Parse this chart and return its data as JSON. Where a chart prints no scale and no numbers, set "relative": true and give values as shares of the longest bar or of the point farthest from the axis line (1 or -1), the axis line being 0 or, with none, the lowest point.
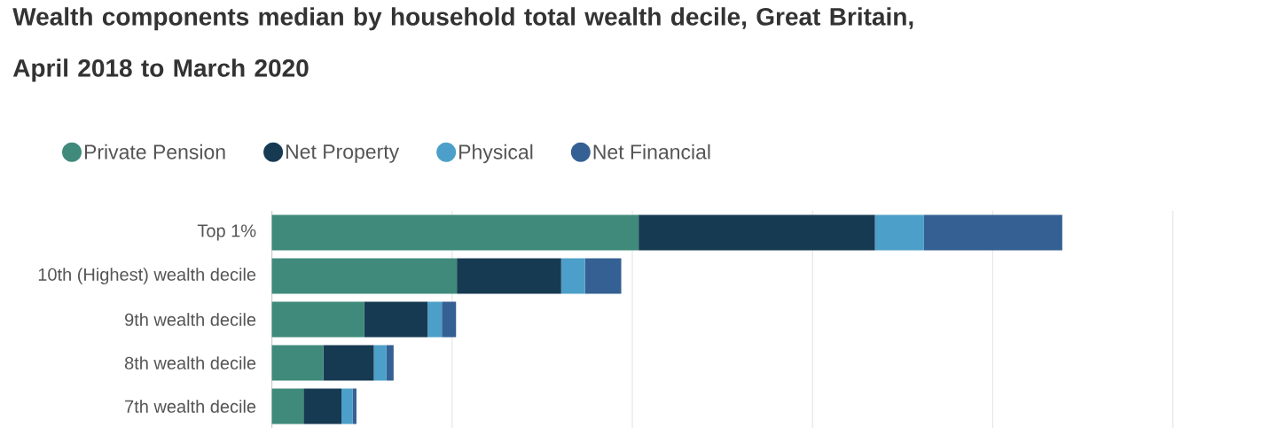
{
  "chart_data": {
    "type": "bar",
    "orientation": "horizontal",
    "stacked": true,
    "relative": true,
    "grid": "x",
    "legend": "top",
    "title": "Wealth components median by household total wealth decile, Great Britain, April 2018 to March 2020",
    "categories": [
      "Top 1%",
      "10th (Highest) wealth decile",
      "9th wealth decile",
      "8th wealth decile",
      "7th wealth decile"
    ],
    "series": [
      {
        "name": "Private Pension",
        "color": "#3f8a7a",
        "values": [
          0.464,
          0.234,
          0.117,
          0.065,
          0.04
        ]
      },
      {
        "name": "Net Property",
        "color": "#173a53",
        "values": [
          0.299,
          0.132,
          0.08,
          0.064,
          0.048
        ]
      },
      {
        "name": "Physical",
        "color": "#4c9fc8",
        "values": [
          0.062,
          0.03,
          0.018,
          0.016,
          0.014
        ]
      },
      {
        "name": "Net Financial",
        "color": "#346093",
        "values": [
          0.175,
          0.046,
          0.018,
          0.009,
          0.005
        ]
      }
    ]
  }
}
